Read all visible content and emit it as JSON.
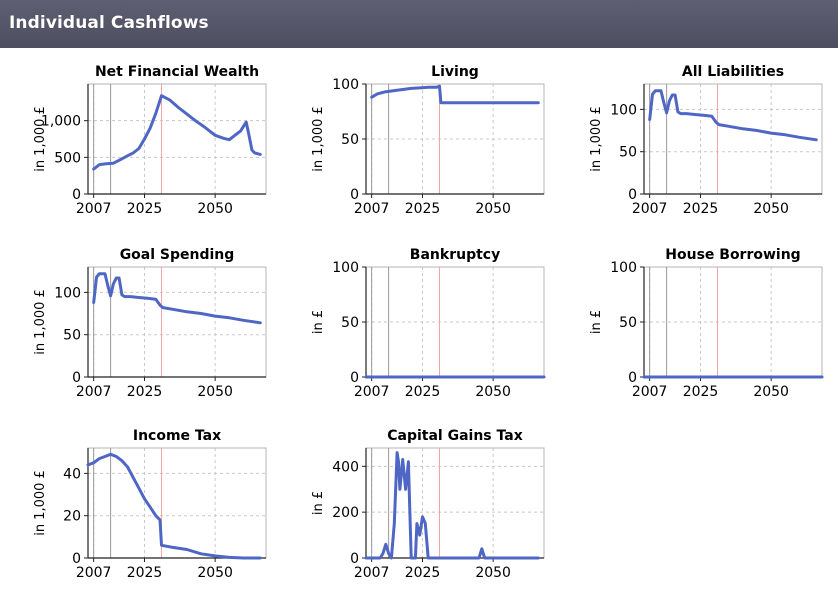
{
  "page": {
    "title": "Individual Cashflows",
    "header_color": "#55566a",
    "line_color": "#4f67c4",
    "marker_color": "#f2a3a3",
    "vline_color": "#9a9a9a",
    "grid_color": "#c8c8c8"
  },
  "chart_data": [
    {
      "id": "net-financial-wealth",
      "type": "line",
      "title": "Net Financial Wealth",
      "xlabel": "",
      "ylabel": "in 1,000 £",
      "xlim": [
        2005,
        2068
      ],
      "ylim": [
        0,
        1500
      ],
      "xticks": [
        2007,
        2025,
        2050
      ],
      "yticks": [
        0,
        500,
        1000
      ],
      "ytick_labels": [
        "0",
        "500",
        "1,000"
      ],
      "grid": true,
      "reference_lines": {
        "gray": [
          2007,
          2013
        ],
        "red": [
          2031
        ]
      },
      "x": [
        2007,
        2009,
        2011,
        2014,
        2016,
        2018,
        2021,
        2023,
        2025,
        2027,
        2029,
        2031,
        2034,
        2037,
        2040,
        2043,
        2046,
        2048,
        2050,
        2053,
        2055,
        2057,
        2059,
        2061,
        2062,
        2063,
        2064,
        2066
      ],
      "values": [
        340,
        400,
        410,
        420,
        460,
        500,
        560,
        620,
        750,
        900,
        1100,
        1340,
        1280,
        1180,
        1090,
        1000,
        920,
        860,
        800,
        760,
        740,
        800,
        860,
        980,
        800,
        600,
        560,
        540
      ]
    },
    {
      "id": "living",
      "type": "line",
      "title": "Living",
      "xlabel": "",
      "ylabel": "in 1,000 £",
      "xlim": [
        2005,
        2068
      ],
      "ylim": [
        0,
        100
      ],
      "xticks": [
        2007,
        2025,
        2050
      ],
      "yticks": [
        0,
        50,
        100
      ],
      "ytick_labels": [
        "0",
        "50",
        "100"
      ],
      "grid": true,
      "reference_lines": {
        "gray": [
          2007,
          2013
        ],
        "red": [
          2031
        ]
      },
      "x": [
        2007,
        2009,
        2012,
        2015,
        2018,
        2021,
        2024,
        2027,
        2030,
        2031,
        2031.5,
        2040,
        2050,
        2060,
        2066
      ],
      "values": [
        88,
        91,
        93,
        94,
        95,
        96,
        96.5,
        97,
        97,
        98,
        83,
        83,
        83,
        83,
        83
      ]
    },
    {
      "id": "all-liabilities",
      "type": "line",
      "title": "All Liabilities",
      "xlabel": "",
      "ylabel": "in 1,000 £",
      "xlim": [
        2005,
        2068
      ],
      "ylim": [
        0,
        130
      ],
      "xticks": [
        2007,
        2025,
        2050
      ],
      "yticks": [
        0,
        50,
        100
      ],
      "ytick_labels": [
        "0",
        "50",
        "100"
      ],
      "grid": true,
      "reference_lines": {
        "gray": [
          2007,
          2013
        ],
        "red": [
          2031
        ]
      },
      "x": [
        2007,
        2008,
        2009,
        2011,
        2012,
        2013,
        2014,
        2015,
        2016,
        2017,
        2018,
        2020,
        2023,
        2026,
        2029,
        2030.5,
        2031.5,
        2035,
        2040,
        2045,
        2050,
        2055,
        2060,
        2066
      ],
      "values": [
        88,
        118,
        122,
        122,
        108,
        96,
        110,
        117,
        117,
        97,
        95,
        95,
        94,
        93,
        92,
        85,
        82,
        80,
        77,
        75,
        72,
        70,
        67,
        64
      ]
    },
    {
      "id": "goal-spending",
      "type": "line",
      "title": "Goal Spending",
      "xlabel": "",
      "ylabel": "in 1,000 £",
      "xlim": [
        2005,
        2068
      ],
      "ylim": [
        0,
        130
      ],
      "xticks": [
        2007,
        2025,
        2050
      ],
      "yticks": [
        0,
        50,
        100
      ],
      "ytick_labels": [
        "0",
        "50",
        "100"
      ],
      "grid": true,
      "reference_lines": {
        "gray": [
          2007,
          2013
        ],
        "red": [
          2031
        ]
      },
      "x": [
        2007,
        2008,
        2009,
        2011,
        2012,
        2013,
        2014,
        2015,
        2016,
        2017,
        2018,
        2020,
        2023,
        2026,
        2029,
        2030.5,
        2031.5,
        2035,
        2040,
        2045,
        2050,
        2055,
        2060,
        2066
      ],
      "values": [
        88,
        118,
        122,
        122,
        108,
        96,
        110,
        117,
        117,
        97,
        95,
        95,
        94,
        93,
        92,
        85,
        82,
        80,
        77,
        75,
        72,
        70,
        67,
        64
      ]
    },
    {
      "id": "bankruptcy",
      "type": "line",
      "title": "Bankruptcy",
      "xlabel": "",
      "ylabel": "in £",
      "xlim": [
        2005,
        2068
      ],
      "ylim": [
        0,
        100
      ],
      "xticks": [
        2007,
        2025,
        2050
      ],
      "yticks": [
        0,
        50,
        100
      ],
      "ytick_labels": [
        "0",
        "50",
        "100"
      ],
      "grid": true,
      "reference_lines": {
        "gray": [
          2007,
          2013
        ],
        "red": [
          2031
        ]
      },
      "x": [
        2005,
        2068
      ],
      "values": [
        0,
        0
      ]
    },
    {
      "id": "house-borrowing",
      "type": "line",
      "title": "House Borrowing",
      "xlabel": "",
      "ylabel": "in £",
      "xlim": [
        2005,
        2068
      ],
      "ylim": [
        0,
        100
      ],
      "xticks": [
        2007,
        2025,
        2050
      ],
      "yticks": [
        0,
        50,
        100
      ],
      "ytick_labels": [
        "0",
        "50",
        "100"
      ],
      "grid": true,
      "reference_lines": {
        "gray": [
          2007,
          2013
        ],
        "red": [
          2031
        ]
      },
      "x": [
        2005,
        2068
      ],
      "values": [
        0,
        0
      ]
    },
    {
      "id": "income-tax",
      "type": "line",
      "title": "Income Tax",
      "xlabel": "",
      "ylabel": "in 1,000 £",
      "xlim": [
        2005,
        2068
      ],
      "ylim": [
        0,
        52
      ],
      "xticks": [
        2007,
        2025,
        2050
      ],
      "yticks": [
        0,
        20,
        40
      ],
      "ytick_labels": [
        "0",
        "20",
        "40"
      ],
      "grid": true,
      "reference_lines": {
        "gray": [
          2007,
          2013
        ],
        "red": [
          2031
        ]
      },
      "x": [
        2005,
        2007,
        2009,
        2011,
        2013,
        2015,
        2017,
        2019,
        2021,
        2023,
        2025,
        2027,
        2029,
        2030.5,
        2031,
        2035,
        2040,
        2045,
        2050,
        2055,
        2060,
        2066
      ],
      "values": [
        44,
        45,
        47,
        48,
        49,
        48,
        46,
        43,
        38,
        33,
        28,
        24,
        20,
        18,
        6,
        5,
        4,
        2,
        1,
        0.3,
        0,
        0
      ]
    },
    {
      "id": "capital-gains-tax",
      "type": "line",
      "title": "Capital Gains Tax",
      "xlabel": "",
      "ylabel": "in £",
      "xlim": [
        2005,
        2068
      ],
      "ylim": [
        0,
        480
      ],
      "xticks": [
        2007,
        2025,
        2050
      ],
      "yticks": [
        0,
        200,
        400
      ],
      "ytick_labels": [
        "0",
        "200",
        "400"
      ],
      "grid": true,
      "reference_lines": {
        "gray": [
          2007,
          2013
        ],
        "red": [
          2031
        ]
      },
      "x": [
        2005,
        2010,
        2011,
        2012,
        2013,
        2014,
        2015,
        2016,
        2016.5,
        2017,
        2018,
        2019,
        2020,
        2021,
        2022,
        2022.5,
        2023,
        2024,
        2025,
        2026,
        2027,
        2028,
        2029,
        2030,
        2045,
        2046,
        2047,
        2048,
        2066
      ],
      "values": [
        0,
        0,
        20,
        60,
        20,
        0,
        150,
        460,
        420,
        300,
        430,
        300,
        420,
        0,
        0,
        0,
        150,
        100,
        180,
        150,
        0,
        0,
        0,
        0,
        0,
        40,
        0,
        0,
        0
      ]
    }
  ]
}
